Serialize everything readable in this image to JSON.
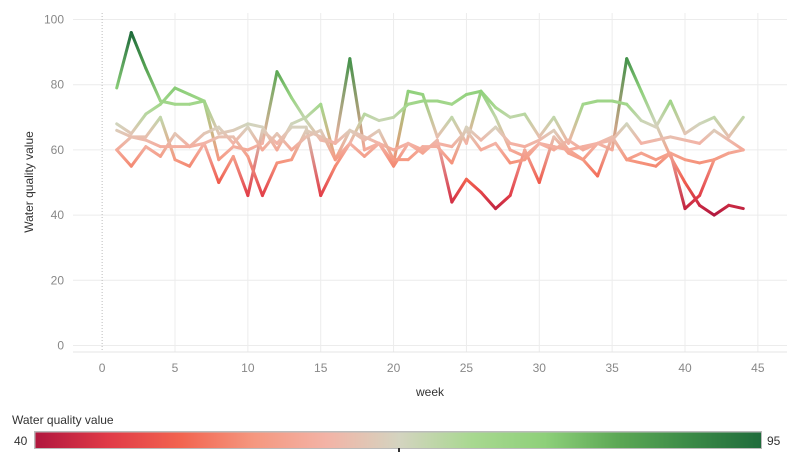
{
  "chart_data": {
    "type": "line",
    "ylabel": "Water quality value",
    "xlabel": "week",
    "x_ticks": [
      0,
      5,
      10,
      15,
      20,
      25,
      30,
      35,
      40,
      45
    ],
    "y_ticks": [
      0,
      20,
      40,
      60,
      80,
      100
    ],
    "xlim": [
      -2,
      47
    ],
    "ylim": [
      -2,
      102
    ],
    "grid": true,
    "color_legend": {
      "title": "Water quality value",
      "min": "40",
      "max": "95",
      "min_value": 40,
      "max_value": 95,
      "stops": [
        "#b0173e",
        "#e03a47",
        "#f26450",
        "#f5977f",
        "#f3b3a6",
        "#d4d4c0",
        "#a8d890",
        "#8ed07a",
        "#5ca855",
        "#3b8a47",
        "#1f6b3b"
      ]
    },
    "series": [
      {
        "x": [
          1,
          2,
          3,
          4,
          5,
          6,
          7,
          8,
          9,
          10,
          11,
          12,
          13,
          14,
          15,
          16,
          17,
          18,
          19,
          20,
          21,
          22,
          23,
          24,
          25,
          26,
          27,
          28,
          29,
          30,
          31,
          32,
          33,
          34,
          35,
          36,
          37,
          38,
          39,
          40,
          41,
          42,
          43,
          44
        ],
        "y": [
          79,
          96,
          85,
          75,
          74,
          74,
          75,
          57,
          61,
          60,
          62,
          84,
          76,
          69,
          63,
          62,
          88,
          60,
          62,
          56,
          78,
          77,
          64,
          70,
          62,
          78,
          70,
          60,
          58,
          62,
          60,
          63,
          60,
          62,
          60,
          88,
          78,
          68,
          58,
          50,
          43,
          40,
          43,
          42
        ]
      },
      {
        "x": [
          1,
          2,
          3,
          4,
          5,
          6,
          7,
          8,
          9,
          10,
          11,
          12,
          13,
          14,
          15,
          16,
          17,
          18,
          19,
          20,
          21,
          22,
          23,
          24,
          25,
          26,
          27,
          28,
          29,
          30,
          31,
          32,
          33,
          34,
          35,
          36,
          37,
          38,
          39,
          40,
          41,
          42,
          43,
          44
        ],
        "y": [
          68,
          65,
          71,
          74,
          79,
          77,
          75,
          65,
          66,
          68,
          67,
          60,
          68,
          70,
          74,
          57,
          62,
          71,
          69,
          70,
          74,
          75,
          75,
          74,
          77,
          78,
          73,
          70,
          71,
          64,
          70,
          62,
          74,
          75,
          75,
          74,
          69,
          67,
          75,
          65,
          68,
          70,
          64,
          70
        ]
      },
      {
        "x": [
          1,
          2,
          3,
          4,
          5,
          6,
          7,
          8,
          9,
          10,
          11,
          12,
          13,
          14,
          15,
          16,
          17,
          18,
          19,
          20,
          21,
          22,
          23,
          24,
          25,
          26,
          27,
          28,
          29,
          30,
          31,
          32,
          33,
          34,
          35,
          36,
          37,
          38,
          39,
          40,
          41,
          42,
          43,
          44
        ],
        "y": [
          60,
          64,
          64,
          70,
          57,
          55,
          62,
          50,
          58,
          46,
          66,
          62,
          67,
          67,
          46,
          55,
          62,
          58,
          62,
          55,
          62,
          59,
          63,
          44,
          51,
          47,
          42,
          46,
          60,
          50,
          64,
          59,
          57,
          52,
          64,
          57,
          56,
          55,
          59,
          57,
          56,
          57,
          59,
          60
        ]
      },
      {
        "x": [
          1,
          2,
          3,
          4,
          5,
          6,
          7,
          8,
          9,
          10,
          11,
          12,
          13,
          14,
          15,
          16,
          17,
          18,
          19,
          20,
          21,
          22,
          23,
          24,
          25,
          26,
          27,
          28,
          29,
          30,
          31,
          32,
          33,
          34,
          35,
          36,
          37,
          38,
          39,
          40,
          41,
          42,
          43
        ],
        "y": [
          60,
          55,
          61,
          58,
          65,
          61,
          62,
          64,
          64,
          58,
          46,
          56,
          57,
          66,
          64,
          62,
          66,
          64,
          62,
          60,
          62,
          60,
          62,
          61,
          66,
          60,
          62,
          56,
          57,
          62,
          61,
          60,
          57,
          62,
          64,
          57,
          59,
          57,
          59,
          42,
          46,
          57,
          59
        ]
      },
      {
        "x": [
          1,
          2,
          3,
          4,
          5,
          6,
          7,
          8,
          9,
          10,
          11,
          12,
          13,
          14,
          15,
          16,
          17,
          18,
          19,
          20,
          21,
          22,
          23,
          24,
          25,
          26,
          27,
          28,
          29,
          30,
          31,
          32,
          33,
          34,
          35,
          36,
          37,
          38,
          39,
          40,
          41,
          42,
          43,
          44
        ],
        "y": [
          66,
          64,
          63,
          61,
          61,
          61,
          65,
          67,
          62,
          67,
          60,
          65,
          60,
          64,
          66,
          57,
          66,
          63,
          66,
          57,
          57,
          61,
          61,
          56,
          67,
          63,
          67,
          62,
          61,
          63,
          66,
          60,
          61,
          62,
          63,
          68,
          62,
          63,
          64,
          63,
          62,
          66,
          63,
          60
        ]
      }
    ]
  }
}
